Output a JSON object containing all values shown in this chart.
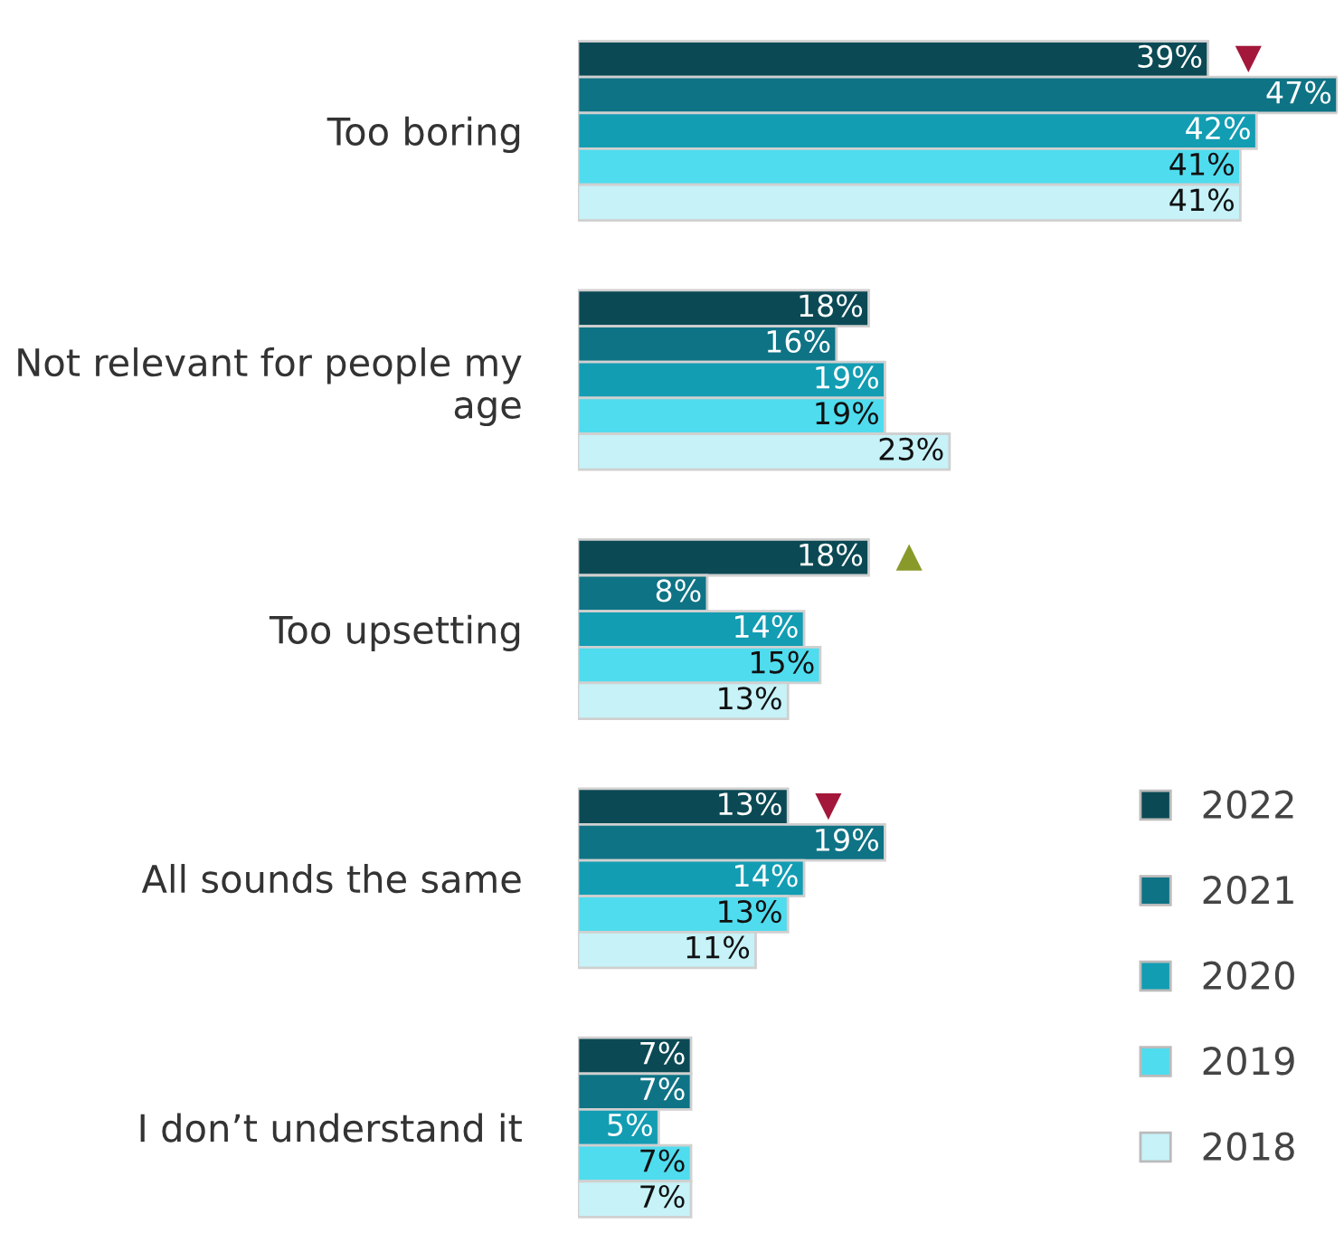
{
  "chart_data": {
    "type": "bar",
    "orientation": "horizontal",
    "categories": [
      "Too boring",
      "Not relevant for people my age",
      "Too upsetting",
      "All sounds the same",
      "I don’t understand it"
    ],
    "series": [
      {
        "name": "2022",
        "color": "#0b4a55",
        "values": [
          39,
          18,
          18,
          13,
          7
        ],
        "value_labels": [
          "39%",
          "18%",
          "18%",
          "13%",
          "7%"
        ]
      },
      {
        "name": "2021",
        "color": "#0e7385",
        "values": [
          47,
          16,
          8,
          19,
          7
        ],
        "value_labels": [
          "47%",
          "16%",
          "8%",
          "19%",
          "7%"
        ]
      },
      {
        "name": "2020",
        "color": "#129db3",
        "values": [
          42,
          19,
          14,
          14,
          5
        ],
        "value_labels": [
          "42%",
          "19%",
          "14%",
          "14%",
          "5%"
        ]
      },
      {
        "name": "2019",
        "color": "#4fdcee",
        "values": [
          41,
          19,
          15,
          13,
          7
        ],
        "value_labels": [
          "41%",
          "19%",
          "15%",
          "13%",
          "7%"
        ]
      },
      {
        "name": "2018",
        "color": "#c6f2f8",
        "values": [
          41,
          23,
          13,
          11,
          7
        ],
        "value_labels": [
          "41%",
          "23%",
          "13%",
          "11%",
          "7%"
        ]
      },
      {
        "type": "scatter",
        "marker": "triangle_down",
        "color": "#a3173a",
        "x": [
          "Too boring",
          "All sounds the same"
        ],
        "values": [
          41.5,
          15.5
        ]
      },
      {
        "type": "scatter",
        "marker": "triangle",
        "color": "#8a9a2a",
        "x": [
          "Too upsetting"
        ],
        "values": [
          20.5
        ]
      }
    ],
    "tick_labels": "y",
    "legend": "bottom right"
  }
}
